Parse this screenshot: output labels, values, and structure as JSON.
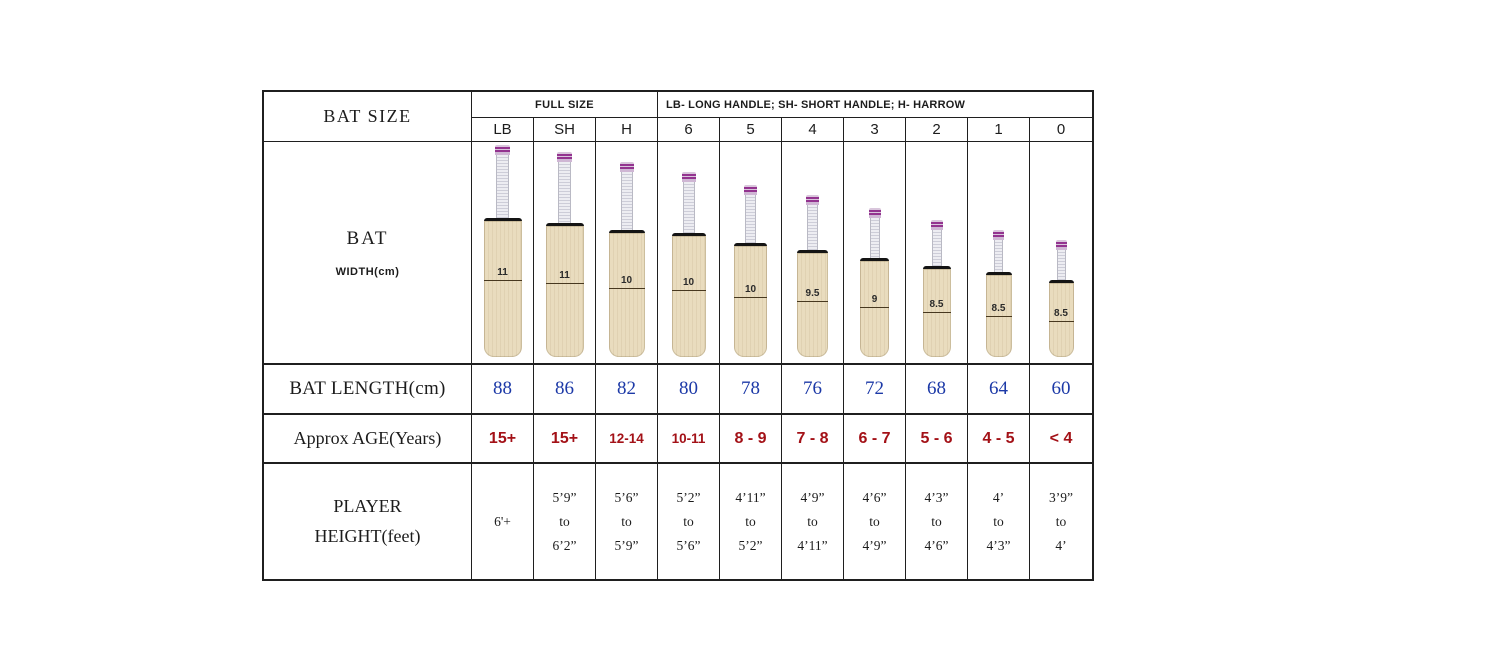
{
  "header": {
    "bat_size_label": "BAT SIZE",
    "full_size_label": "FULL SIZE",
    "handle_legend": "LB- LONG HANDLE; SH- SHORT HANDLE; H- HARROW"
  },
  "rows": {
    "bat_width_label": "BAT",
    "bat_width_sublabel": "WIDTH(cm)",
    "bat_length_label": "BAT LENGTH(cm)",
    "age_label": "Approx AGE(Years)",
    "height_label_line1": "PLAYER",
    "height_label_line2": "HEIGHT(feet)"
  },
  "colors": {
    "length_value": "#1c39a7",
    "age_value": "#a31117",
    "blade": "#e9dcbe",
    "grip_ring": "#93338f",
    "border": "#1f1f1f"
  },
  "columns": [
    {
      "size": "LB",
      "width_cm": "11",
      "length_cm": "88",
      "age": "15+",
      "height": [
        "6'+"
      ]
    },
    {
      "size": "SH",
      "width_cm": "11",
      "length_cm": "86",
      "age": "15+",
      "height": [
        "5’9”",
        "to",
        "6’2”"
      ]
    },
    {
      "size": "H",
      "width_cm": "10",
      "length_cm": "82",
      "age": "12-14",
      "height": [
        "5’6”",
        "to",
        "5’9”"
      ]
    },
    {
      "size": "6",
      "width_cm": "10",
      "length_cm": "80",
      "age": "10-11",
      "height": [
        "5’2”",
        "to",
        "5’6”"
      ]
    },
    {
      "size": "5",
      "width_cm": "10",
      "length_cm": "78",
      "age": "8 - 9",
      "height": [
        "4’11”",
        "to",
        "5’2”"
      ]
    },
    {
      "size": "4",
      "width_cm": "9.5",
      "length_cm": "76",
      "age": "7 - 8",
      "height": [
        "4’9”",
        "to",
        "4’11”"
      ]
    },
    {
      "size": "3",
      "width_cm": "9",
      "length_cm": "72",
      "age": "6 - 7",
      "height": [
        "4’6”",
        "to",
        "4’9”"
      ]
    },
    {
      "size": "2",
      "width_cm": "8.5",
      "length_cm": "68",
      "age": "5 - 6",
      "height": [
        "4’3”",
        "to",
        "4’6”"
      ]
    },
    {
      "size": "1",
      "width_cm": "8.5",
      "length_cm": "64",
      "age": "4 - 5",
      "height": [
        "4’",
        "to",
        "4’3”"
      ]
    },
    {
      "size": "0",
      "width_cm": "8.5",
      "length_cm": "60",
      "age": "< 4",
      "height": [
        "3’9”",
        "to",
        "4’"
      ]
    }
  ],
  "chart_data": {
    "type": "table",
    "title": "BAT SIZE",
    "legend": [
      "FULL SIZE",
      "LB- LONG HANDLE; SH- SHORT HANDLE; H- HARROW"
    ],
    "columns": [
      "LB",
      "SH",
      "H",
      "6",
      "5",
      "4",
      "3",
      "2",
      "1",
      "0"
    ],
    "rows": [
      {
        "label": "BAT WIDTH(cm)",
        "values": [
          11,
          11,
          10,
          10,
          10,
          9.5,
          9,
          8.5,
          8.5,
          8.5
        ]
      },
      {
        "label": "BAT LENGTH(cm)",
        "values": [
          88,
          86,
          82,
          80,
          78,
          76,
          72,
          68,
          64,
          60
        ]
      },
      {
        "label": "Approx AGE(Years)",
        "values": [
          "15+",
          "15+",
          "12-14",
          "10-11",
          "8 - 9",
          "7 - 8",
          "6 - 7",
          "5 - 6",
          "4 - 5",
          "< 4"
        ]
      },
      {
        "label": "PLAYER HEIGHT(feet)",
        "values": [
          "6'+",
          "5’9” to 6’2”",
          "5’6” to 5’9”",
          "5’2” to 5’6”",
          "4’11” to 5’2”",
          "4’9” to 4’11”",
          "4’6” to 4’9”",
          "4’3” to 4’6”",
          "4’ to 4’3”",
          "3’9” to 4’"
        ]
      }
    ]
  }
}
